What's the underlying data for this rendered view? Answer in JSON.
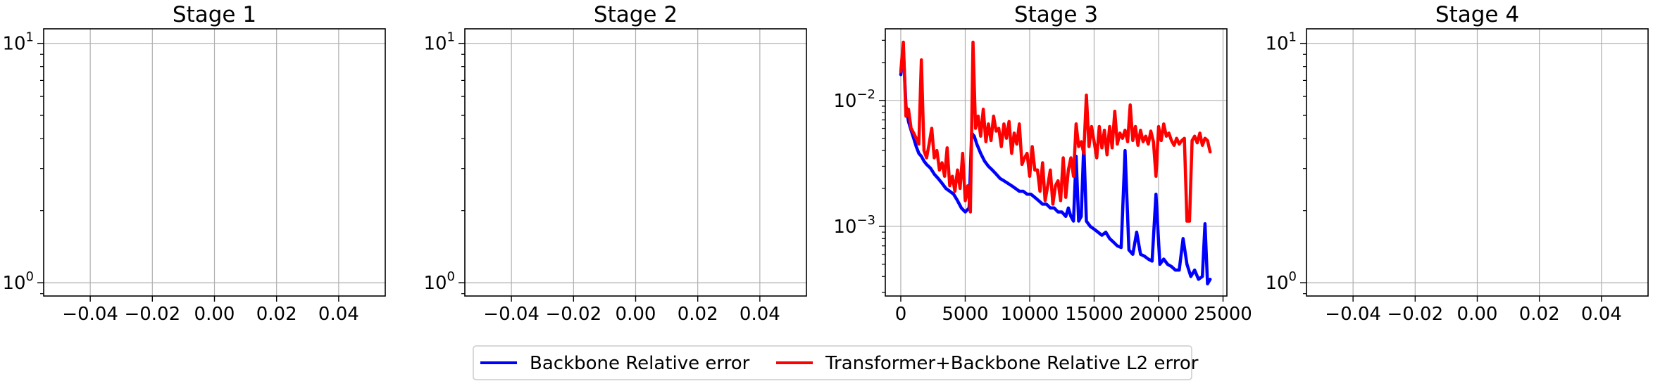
{
  "chart_data": [
    {
      "type": "line",
      "title": "Stage 1",
      "xlabel": "",
      "ylabel": "",
      "xlim": [
        -0.055,
        0.055
      ],
      "ylim": [
        0.88,
        11.5
      ],
      "yscale": "log",
      "xticks": [
        -0.04,
        -0.02,
        0.0,
        0.02,
        0.04
      ],
      "xtick_labels": [
        "−0.04",
        "−0.02",
        "0.00",
        "0.02",
        "0.04"
      ],
      "yticks": [
        1,
        10
      ],
      "ytick_labels": [
        {
          "base": "10",
          "exp": "0"
        },
        {
          "base": "10",
          "exp": "1"
        }
      ],
      "grid": true,
      "series": []
    },
    {
      "type": "line",
      "title": "Stage 2",
      "xlabel": "",
      "ylabel": "",
      "xlim": [
        -0.055,
        0.055
      ],
      "ylim": [
        0.88,
        11.5
      ],
      "yscale": "log",
      "xticks": [
        -0.04,
        -0.02,
        0.0,
        0.02,
        0.04
      ],
      "xtick_labels": [
        "−0.04",
        "−0.02",
        "0.00",
        "0.02",
        "0.04"
      ],
      "yticks": [
        1,
        10
      ],
      "ytick_labels": [
        {
          "base": "10",
          "exp": "0"
        },
        {
          "base": "10",
          "exp": "1"
        }
      ],
      "grid": true,
      "series": []
    },
    {
      "type": "line",
      "title": "Stage 3",
      "xlabel": "",
      "ylabel": "",
      "xlim": [
        -1200,
        25300
      ],
      "ylim": [
        0.00028,
        0.037
      ],
      "yscale": "log",
      "xticks": [
        0,
        5000,
        10000,
        15000,
        20000,
        25000
      ],
      "xtick_labels": [
        "0",
        "5000",
        "10000",
        "15000",
        "20000",
        "25000"
      ],
      "yticks": [
        0.001,
        0.01
      ],
      "ytick_labels": [
        {
          "base": "10",
          "exp": "−3"
        },
        {
          "base": "10",
          "exp": "−2"
        }
      ],
      "grid": true,
      "series": [
        {
          "name": "Backbone Relative error",
          "color": "#0000ff",
          "x": [
            0,
            200,
            400,
            600,
            800,
            1000,
            1200,
            1400,
            1600,
            1800,
            2000,
            2300,
            2600,
            2900,
            3200,
            3500,
            3800,
            4100,
            4400,
            4700,
            5000,
            5300,
            5500,
            5700,
            5900,
            6200,
            6500,
            6800,
            7100,
            7400,
            7700,
            8000,
            8300,
            8600,
            8900,
            9200,
            9500,
            9800,
            10100,
            10400,
            10700,
            11000,
            11300,
            11600,
            11900,
            12200,
            12500,
            12800,
            13000,
            13200,
            13400,
            13600,
            13800,
            14000,
            14200,
            14400,
            14700,
            15000,
            15300,
            15600,
            15900,
            16200,
            16500,
            16800,
            17100,
            17400,
            17700,
            18000,
            18300,
            18600,
            18900,
            19200,
            19500,
            19800,
            20100,
            20400,
            20700,
            21000,
            21300,
            21600,
            21900,
            22200,
            22500,
            22800,
            23100,
            23400,
            23600,
            23800,
            24000
          ],
          "y": [
            0.016,
            0.026,
            0.009,
            0.0068,
            0.0058,
            0.005,
            0.0043,
            0.0038,
            0.0036,
            0.0033,
            0.0031,
            0.0029,
            0.0026,
            0.0024,
            0.0022,
            0.002,
            0.0019,
            0.0018,
            0.0016,
            0.0014,
            0.0013,
            0.0014,
            0.0055,
            0.0052,
            0.0045,
            0.0038,
            0.0033,
            0.003,
            0.0028,
            0.0026,
            0.0024,
            0.0023,
            0.0022,
            0.0021,
            0.002,
            0.0019,
            0.0019,
            0.0018,
            0.0018,
            0.0017,
            0.0016,
            0.0015,
            0.0015,
            0.0014,
            0.0014,
            0.0013,
            0.0013,
            0.0012,
            0.0014,
            0.0012,
            0.0011,
            0.0036,
            0.0011,
            0.0012,
            0.0045,
            0.0011,
            0.001,
            0.00095,
            0.0009,
            0.00085,
            0.0009,
            0.0008,
            0.00075,
            0.0007,
            0.00068,
            0.004,
            0.00065,
            0.0006,
            0.0009,
            0.0006,
            0.00058,
            0.00055,
            0.00053,
            0.0018,
            0.0005,
            0.00055,
            0.0005,
            0.00048,
            0.00045,
            0.00045,
            0.0008,
            0.0005,
            0.0004,
            0.00045,
            0.00038,
            0.0004,
            0.00105,
            0.00035,
            0.00038
          ]
        },
        {
          "name": "Transformer+Backbone Relative L2 error",
          "color": "#ff0000",
          "x": [
            0,
            200,
            400,
            600,
            800,
            1000,
            1200,
            1400,
            1600,
            1800,
            2000,
            2200,
            2400,
            2600,
            2800,
            3000,
            3200,
            3400,
            3600,
            3800,
            4000,
            4200,
            4400,
            4600,
            4800,
            5000,
            5200,
            5400,
            5600,
            5800,
            6000,
            6200,
            6400,
            6600,
            6800,
            7000,
            7200,
            7400,
            7600,
            7800,
            8000,
            8200,
            8400,
            8600,
            8800,
            9000,
            9200,
            9400,
            9600,
            9800,
            10000,
            10200,
            10400,
            10600,
            10800,
            11000,
            11200,
            11400,
            11600,
            11800,
            12000,
            12200,
            12400,
            12600,
            12800,
            13000,
            13200,
            13400,
            13600,
            13800,
            14000,
            14200,
            14400,
            14600,
            14800,
            15000,
            15200,
            15400,
            15600,
            15800,
            16000,
            16200,
            16400,
            16600,
            16800,
            17000,
            17200,
            17400,
            17600,
            17800,
            18000,
            18200,
            18400,
            18600,
            18800,
            19000,
            19200,
            19400,
            19600,
            19800,
            20000,
            20200,
            20400,
            20600,
            20800,
            21000,
            21200,
            21400,
            21600,
            21800,
            22000,
            22200,
            22400,
            22600,
            22800,
            23000,
            23200,
            23400,
            23600,
            23800,
            24000
          ],
          "y": [
            0.017,
            0.029,
            0.0075,
            0.0085,
            0.006,
            0.0055,
            0.005,
            0.0045,
            0.021,
            0.004,
            0.0035,
            0.0045,
            0.006,
            0.0035,
            0.004,
            0.0028,
            0.0032,
            0.0025,
            0.0042,
            0.0021,
            0.0025,
            0.0019,
            0.0028,
            0.002,
            0.0038,
            0.0016,
            0.0021,
            0.0013,
            0.029,
            0.006,
            0.0075,
            0.0052,
            0.0085,
            0.0047,
            0.0065,
            0.0048,
            0.0075,
            0.0057,
            0.006,
            0.0043,
            0.0065,
            0.005,
            0.0068,
            0.0038,
            0.0055,
            0.0045,
            0.0065,
            0.0031,
            0.0035,
            0.0038,
            0.0025,
            0.0043,
            0.0028,
            0.0028,
            0.0019,
            0.0032,
            0.0016,
            0.0021,
            0.0028,
            0.0015,
            0.0021,
            0.0023,
            0.0016,
            0.0035,
            0.0017,
            0.0028,
            0.0035,
            0.0025,
            0.0065,
            0.0043,
            0.0047,
            0.0038,
            0.011,
            0.0043,
            0.0062,
            0.0047,
            0.0035,
            0.0062,
            0.0042,
            0.0058,
            0.0037,
            0.0062,
            0.0042,
            0.0082,
            0.0045,
            0.0055,
            0.005,
            0.0058,
            0.0047,
            0.0092,
            0.0048,
            0.0062,
            0.0044,
            0.0058,
            0.0047,
            0.0052,
            0.0045,
            0.0057,
            0.0047,
            0.0025,
            0.0062,
            0.0048,
            0.0065,
            0.0052,
            0.0055,
            0.0048,
            0.0044,
            0.005,
            0.0045,
            0.0048,
            0.005,
            0.0011,
            0.0011,
            0.0048,
            0.0052,
            0.0046,
            0.0055,
            0.0044,
            0.005,
            0.0048,
            0.0039
          ]
        }
      ]
    },
    {
      "type": "line",
      "title": "Stage 4",
      "xlabel": "",
      "ylabel": "",
      "xlim": [
        -0.055,
        0.055
      ],
      "ylim": [
        0.88,
        11.5
      ],
      "yscale": "log",
      "xticks": [
        -0.04,
        -0.02,
        0.0,
        0.02,
        0.04
      ],
      "xtick_labels": [
        "−0.04",
        "−0.02",
        "0.00",
        "0.02",
        "0.04"
      ],
      "yticks": [
        1,
        10
      ],
      "ytick_labels": [
        {
          "base": "10",
          "exp": "0"
        },
        {
          "base": "10",
          "exp": "1"
        }
      ],
      "grid": true,
      "series": []
    }
  ],
  "legend": {
    "position": "bottom-center",
    "entries": [
      {
        "label": "Backbone Relative error",
        "color": "#0000ff"
      },
      {
        "label": "Transformer+Backbone Relative L2 error",
        "color": "#ff0000"
      }
    ]
  }
}
